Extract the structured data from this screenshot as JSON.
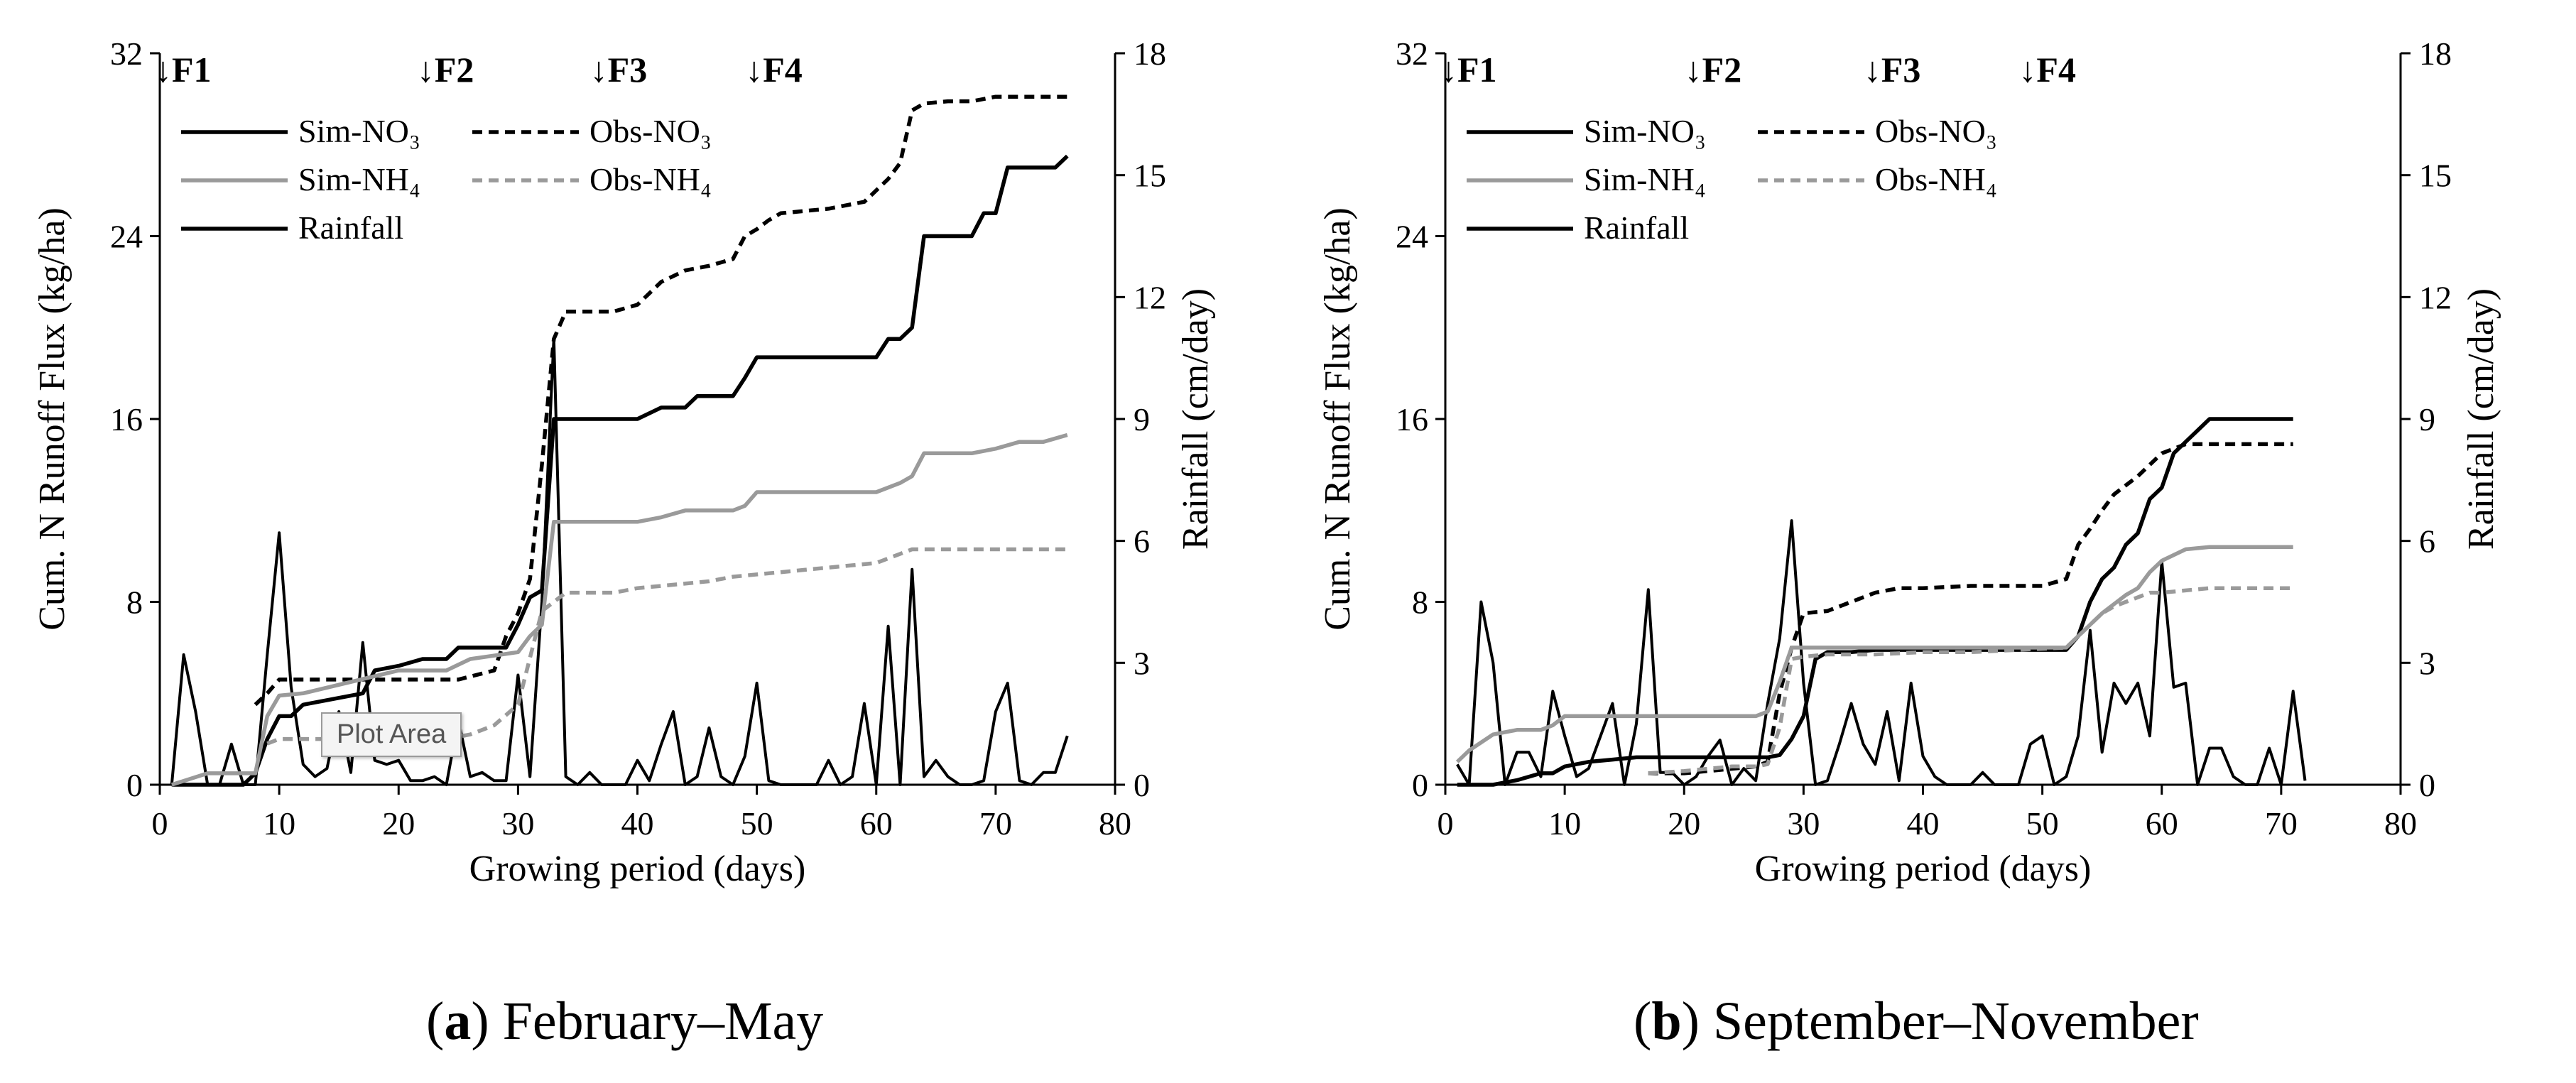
{
  "chart_data": [
    {
      "id": "a",
      "type": "line",
      "caption_letter": "a",
      "caption_text": ") February–May",
      "xlabel": "Growing period (days)",
      "ylabel": "Cum. N Runoff Flux (kg/ha)",
      "y2label": "Rainfall (cm/day)",
      "xlim": [
        0,
        80
      ],
      "ylim": [
        0,
        32
      ],
      "y2lim": [
        0,
        18
      ],
      "xticks": [
        "0",
        "10",
        "20",
        "30",
        "40",
        "50",
        "60",
        "70",
        "80"
      ],
      "yticks": [
        "0",
        "8",
        "16",
        "24",
        "32"
      ],
      "y2ticks": [
        "0",
        "3",
        "6",
        "9",
        "12",
        "15",
        "18"
      ],
      "fert_markers": [
        {
          "label": "↓F1",
          "day": 0
        },
        {
          "label": "↓F2",
          "day": 22
        },
        {
          "label": "↓F3",
          "day": 36.5
        },
        {
          "label": "↓F4",
          "day": 49.5
        }
      ],
      "legend": {
        "sim_no3": "Sim-NO₃",
        "obs_no3": "Obs-NO₃",
        "sim_nh4": "Sim-NH₄",
        "obs_nh4": "Obs-NH₄",
        "rainfall": "Rainfall"
      },
      "tooltip": "Plot Area",
      "series": [
        {
          "name": "Sim-NO3",
          "axis": "left",
          "color": "#000000",
          "dash": "none",
          "x": [
            1,
            7,
            8,
            9,
            10,
            11,
            12,
            17,
            18,
            20,
            22,
            24,
            25,
            27,
            29,
            30,
            31,
            32,
            33,
            34,
            36,
            40,
            42,
            44,
            45,
            47,
            48,
            49,
            50,
            52,
            56,
            58,
            60,
            61,
            62,
            63,
            64,
            66,
            68,
            69,
            70,
            71,
            72,
            74,
            75,
            76
          ],
          "y": [
            0,
            0,
            0.5,
            2,
            3,
            3,
            3.5,
            4,
            5,
            5.2,
            5.5,
            5.5,
            6,
            6,
            6,
            7,
            8.2,
            8.5,
            16,
            16,
            16,
            16,
            16.5,
            16.5,
            17,
            17,
            17,
            17.8,
            18.7,
            18.7,
            18.7,
            18.7,
            18.7,
            19.5,
            19.5,
            20,
            24,
            24,
            24,
            25,
            25,
            27,
            27,
            27,
            27,
            27.5
          ]
        },
        {
          "name": "Obs-NO3",
          "axis": "left",
          "color": "#000000",
          "dash": "14,9",
          "x": [
            8,
            9,
            10,
            20,
            24,
            25,
            28,
            29,
            30,
            31,
            32,
            33,
            34,
            38,
            40,
            41,
            42,
            44,
            46,
            48,
            49,
            50,
            51,
            52,
            54,
            56,
            58,
            59,
            61,
            62,
            63,
            64,
            66,
            68,
            70,
            72,
            74,
            76
          ],
          "y": [
            3.5,
            4,
            4.6,
            4.6,
            4.6,
            4.6,
            5,
            6.5,
            7.5,
            9,
            14,
            19.5,
            20.7,
            20.7,
            21,
            21.5,
            22,
            22.5,
            22.7,
            23,
            24,
            24.3,
            24.7,
            25,
            25.1,
            25.2,
            25.4,
            25.5,
            26.5,
            27.2,
            29.5,
            29.8,
            29.9,
            29.9,
            30.1,
            30.1,
            30.1,
            30.1
          ]
        },
        {
          "name": "Sim-NH4",
          "axis": "left",
          "color": "#9a9a9a",
          "dash": "none",
          "x": [
            1,
            4,
            8,
            9,
            10,
            12,
            20,
            24,
            26,
            30,
            31,
            32,
            33,
            34,
            38,
            40,
            42,
            44,
            46,
            48,
            49,
            50,
            52,
            56,
            58,
            60,
            62,
            63,
            64,
            66,
            68,
            70,
            72,
            74,
            76
          ],
          "y": [
            0,
            0.5,
            0.5,
            3,
            3.9,
            4,
            5,
            5,
            5.5,
            5.8,
            6.5,
            7,
            11.5,
            11.5,
            11.5,
            11.5,
            11.7,
            12,
            12,
            12,
            12.2,
            12.8,
            12.8,
            12.8,
            12.8,
            12.8,
            13.2,
            13.5,
            14.5,
            14.5,
            14.5,
            14.7,
            15,
            15,
            15.3
          ]
        },
        {
          "name": "Obs-NH4",
          "axis": "left",
          "color": "#9a9a9a",
          "dash": "14,9",
          "x": [
            9,
            10,
            12,
            20,
            24,
            26,
            28,
            30,
            32,
            34,
            38,
            40,
            42,
            44,
            46,
            48,
            50,
            52,
            54,
            56,
            58,
            60,
            62,
            63,
            64,
            66,
            68,
            70,
            72,
            74,
            76
          ],
          "y": [
            1.8,
            2,
            2,
            2,
            2,
            2.2,
            2.6,
            3.5,
            7.6,
            8.4,
            8.4,
            8.6,
            8.7,
            8.8,
            8.9,
            9.1,
            9.2,
            9.3,
            9.4,
            9.5,
            9.6,
            9.7,
            10.1,
            10.3,
            10.3,
            10.3,
            10.3,
            10.3,
            10.3,
            10.3,
            10.3
          ]
        },
        {
          "name": "Rainfall",
          "axis": "right",
          "color": "#000000",
          "dash": "none",
          "x": [
            1,
            2,
            3,
            4,
            5,
            6,
            7,
            8,
            9,
            10,
            11,
            12,
            13,
            14,
            15,
            16,
            17,
            18,
            19,
            20,
            21,
            22,
            23,
            24,
            25,
            26,
            27,
            28,
            29,
            30,
            31,
            32,
            33,
            34,
            35,
            36,
            37,
            38,
            39,
            40,
            41,
            42,
            43,
            44,
            45,
            46,
            47,
            48,
            49,
            50,
            51,
            52,
            53,
            54,
            55,
            56,
            57,
            58,
            59,
            60,
            61,
            62,
            63,
            64,
            65,
            66,
            67,
            68,
            69,
            70,
            71,
            72,
            73,
            74,
            75,
            76
          ],
          "y": [
            0,
            3.2,
            1.8,
            0,
            0,
            1,
            0,
            0,
            3.2,
            6.2,
            2.4,
            0.5,
            0.2,
            0.4,
            1.8,
            0.3,
            3.5,
            0.6,
            0.5,
            0.6,
            0.1,
            0.1,
            0.2,
            0,
            1.6,
            0.2,
            0.3,
            0.1,
            0.1,
            2.7,
            0.2,
            4.5,
            11,
            0.2,
            0,
            0.3,
            0,
            0,
            0,
            0.6,
            0.1,
            1,
            1.8,
            0,
            0.2,
            1.4,
            0.2,
            0,
            0.7,
            2.5,
            0.1,
            0,
            0,
            0,
            0,
            0.6,
            0,
            0.2,
            2,
            0,
            3.9,
            0,
            5.3,
            0.2,
            0.6,
            0.2,
            0,
            0,
            0.1,
            1.8,
            2.5,
            0.1,
            0,
            0.3,
            0.3,
            1.2
          ]
        }
      ]
    },
    {
      "id": "b",
      "type": "line",
      "caption_letter": "b",
      "caption_text": ") September–November",
      "xlabel": "Growing period (days)",
      "ylabel": "Cum. N Runoff Flux (kg/ha)",
      "y2label": "Rainfall (cm/day)",
      "xlim": [
        0,
        80
      ],
      "ylim": [
        0,
        32
      ],
      "y2lim": [
        0,
        18
      ],
      "xticks": [
        "0",
        "10",
        "20",
        "30",
        "40",
        "50",
        "60",
        "70",
        "80"
      ],
      "yticks": [
        "0",
        "8",
        "16",
        "24",
        "32"
      ],
      "y2ticks": [
        "0",
        "3",
        "6",
        "9",
        "12",
        "15",
        "18"
      ],
      "fert_markers": [
        {
          "label": "↓F1",
          "day": 0
        },
        {
          "label": "↓F2",
          "day": 20.5
        },
        {
          "label": "↓F3",
          "day": 35.5
        },
        {
          "label": "↓F4",
          "day": 48.5
        }
      ],
      "legend": {
        "sim_no3": "Sim-NO₃",
        "obs_no3": "Obs-NO₃",
        "sim_nh4": "Sim-NH₄",
        "obs_nh4": "Obs-NH₄",
        "rainfall": "Rainfall"
      },
      "tooltip": "",
      "series": [
        {
          "name": "Sim-NO3",
          "axis": "left",
          "color": "#000000",
          "dash": "none",
          "x": [
            1,
            2,
            4,
            6,
            8,
            9,
            10,
            12,
            14,
            16,
            20,
            26,
            27,
            28,
            29,
            30,
            31,
            32,
            34,
            36,
            38,
            40,
            44,
            48,
            52,
            53,
            54,
            55,
            56,
            57,
            58,
            59,
            60,
            61,
            62,
            63,
            64,
            66,
            68,
            70,
            71
          ],
          "y": [
            0,
            0,
            0,
            0.2,
            0.5,
            0.5,
            0.8,
            1,
            1.1,
            1.2,
            1.2,
            1.2,
            1.2,
            1.3,
            2,
            3,
            5.5,
            5.8,
            5.8,
            5.9,
            5.9,
            5.9,
            5.9,
            5.9,
            5.9,
            6.5,
            8,
            9,
            9.5,
            10.5,
            11,
            12.5,
            13,
            14.5,
            15,
            15.5,
            16,
            16,
            16,
            16,
            16
          ]
        },
        {
          "name": "Obs-NO3",
          "axis": "left",
          "color": "#000000",
          "dash": "14,9",
          "x": [
            17,
            20,
            24,
            26,
            27,
            28,
            29,
            30,
            32,
            34,
            35,
            36,
            38,
            40,
            44,
            48,
            50,
            52,
            53,
            54,
            55,
            56,
            57,
            58,
            59,
            60,
            62,
            64,
            66,
            68,
            70,
            71
          ],
          "y": [
            0.5,
            0.5,
            0.7,
            0.8,
            1,
            4,
            6,
            7.5,
            7.6,
            8,
            8.2,
            8.4,
            8.6,
            8.6,
            8.7,
            8.7,
            8.7,
            9,
            10.5,
            11.2,
            12,
            12.7,
            13.1,
            13.5,
            14,
            14.5,
            14.9,
            14.9,
            14.9,
            14.9,
            14.9,
            14.9
          ]
        },
        {
          "name": "Sim-NH4",
          "axis": "left",
          "color": "#9a9a9a",
          "dash": "none",
          "x": [
            1,
            2,
            4,
            6,
            8,
            9,
            10,
            14,
            20,
            26,
            27,
            28,
            29,
            30,
            31,
            32,
            36,
            40,
            44,
            48,
            52,
            53,
            54,
            55,
            56,
            57,
            58,
            59,
            60,
            62,
            64,
            66,
            68,
            70,
            71
          ],
          "y": [
            1,
            1.5,
            2.2,
            2.4,
            2.4,
            2.6,
            3,
            3,
            3,
            3,
            3.2,
            4.5,
            6,
            6,
            6,
            6,
            6,
            6,
            6,
            6,
            6,
            6.5,
            7,
            7.5,
            7.9,
            8.3,
            8.6,
            9.3,
            9.8,
            10.3,
            10.4,
            10.4,
            10.4,
            10.4,
            10.4
          ]
        },
        {
          "name": "Obs-NH4",
          "axis": "left",
          "color": "#9a9a9a",
          "dash": "14,9",
          "x": [
            17,
            20,
            24,
            26,
            27,
            28,
            29,
            30,
            32,
            36,
            40,
            44,
            48,
            52,
            53,
            54,
            55,
            56,
            57,
            58,
            59,
            60,
            62,
            64,
            66,
            68,
            70,
            71
          ],
          "y": [
            0.5,
            0.6,
            0.8,
            0.8,
            0.9,
            2.5,
            5.5,
            5.6,
            5.7,
            5.7,
            5.8,
            5.8,
            5.9,
            6,
            6.5,
            7,
            7.5,
            7.8,
            8,
            8.2,
            8.4,
            8.4,
            8.5,
            8.6,
            8.6,
            8.6,
            8.6,
            8.6
          ]
        },
        {
          "name": "Rainfall",
          "axis": "right",
          "color": "#000000",
          "dash": "none",
          "x": [
            1,
            2,
            3,
            4,
            5,
            6,
            7,
            8,
            9,
            10,
            11,
            12,
            13,
            14,
            15,
            16,
            17,
            18,
            19,
            20,
            21,
            22,
            23,
            24,
            25,
            26,
            27,
            28,
            29,
            30,
            31,
            32,
            33,
            34,
            35,
            36,
            37,
            38,
            39,
            40,
            41,
            42,
            43,
            44,
            45,
            46,
            47,
            48,
            49,
            50,
            51,
            52,
            53,
            54,
            55,
            56,
            57,
            58,
            59,
            60,
            61,
            62,
            63,
            64,
            65,
            66,
            67,
            68,
            69,
            70,
            71,
            72
          ],
          "y": [
            0.5,
            0,
            4.5,
            3,
            0,
            0.8,
            0.8,
            0.2,
            2.3,
            1.2,
            0.2,
            0.4,
            1.2,
            2,
            0,
            1.5,
            4.8,
            0.3,
            0.3,
            0,
            0.2,
            0.7,
            1.1,
            0,
            0.4,
            0.1,
            2,
            3.6,
            6.5,
            2.5,
            0,
            0.1,
            1,
            2,
            1,
            0.5,
            1.8,
            0.1,
            2.5,
            0.7,
            0.2,
            0,
            0,
            0,
            0.3,
            0,
            0,
            0,
            1,
            1.2,
            0,
            0.2,
            1.2,
            3.8,
            0.8,
            2.5,
            2,
            2.5,
            1.2,
            5.5,
            2.4,
            2.5,
            0,
            0.9,
            0.9,
            0.2,
            0,
            0,
            0.9,
            0,
            2.3,
            0.1
          ]
        }
      ]
    }
  ]
}
